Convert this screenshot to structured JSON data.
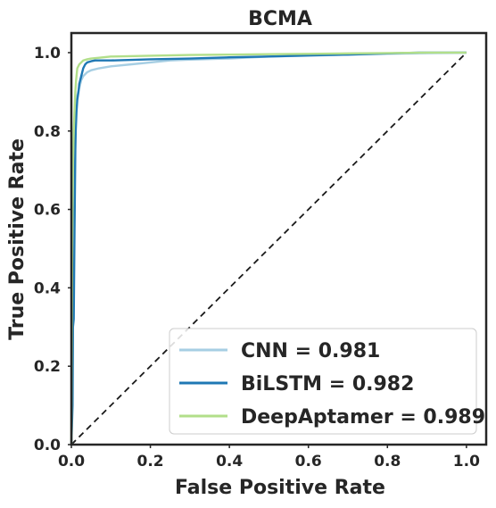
{
  "chart_data": {
    "type": "line",
    "title": "BCMA",
    "xlabel": "False Positive Rate",
    "ylabel": "True Positive Rate",
    "xlim": [
      0.0,
      1.05
    ],
    "ylim": [
      0.0,
      1.05
    ],
    "x_ticks": [
      0.0,
      0.2,
      0.4,
      0.6,
      0.8,
      1.0
    ],
    "y_ticks": [
      0.0,
      0.2,
      0.4,
      0.6,
      0.8,
      1.0
    ],
    "x_tick_labels": [
      "0.0",
      "0.2",
      "0.4",
      "0.6",
      "0.8",
      "1.0"
    ],
    "y_tick_labels": [
      "0.0",
      "0.2",
      "0.4",
      "0.6",
      "0.8",
      "1.0"
    ],
    "grid": false,
    "legend_position": "lower-right",
    "diagonal": {
      "x": [
        0,
        1
      ],
      "y": [
        0,
        1
      ],
      "style": "dashed",
      "color": "#1a1a1a"
    },
    "series": [
      {
        "name": "CNN = 0.981",
        "color": "#a6cee3",
        "x": [
          0,
          0.002,
          0.004,
          0.006,
          0.008,
          0.01,
          0.012,
          0.015,
          0.02,
          0.025,
          0.03,
          0.04,
          0.05,
          0.07,
          0.1,
          0.15,
          0.2,
          0.25,
          0.3,
          0.4,
          0.5,
          0.6,
          0.7,
          0.8,
          0.9,
          1.0
        ],
        "y": [
          0,
          0.1,
          0.3,
          0.55,
          0.72,
          0.8,
          0.85,
          0.89,
          0.91,
          0.93,
          0.94,
          0.95,
          0.955,
          0.96,
          0.965,
          0.97,
          0.975,
          0.98,
          0.982,
          0.985,
          0.99,
          0.992,
          0.995,
          0.997,
          0.999,
          1.0
        ]
      },
      {
        "name": "BiLSTM = 0.982",
        "color": "#1f78b4",
        "x": [
          0,
          0.003,
          0.004,
          0.006,
          0.008,
          0.01,
          0.011,
          0.013,
          0.015,
          0.018,
          0.02,
          0.025,
          0.03,
          0.035,
          0.04,
          0.05,
          0.06,
          0.08,
          0.1,
          0.2,
          0.3,
          0.4,
          0.5,
          0.6,
          0.7,
          0.8,
          0.88,
          0.9,
          1.0
        ],
        "y": [
          0,
          0.1,
          0.3,
          0.32,
          0.55,
          0.75,
          0.8,
          0.85,
          0.88,
          0.9,
          0.92,
          0.94,
          0.96,
          0.97,
          0.975,
          0.978,
          0.98,
          0.98,
          0.98,
          0.983,
          0.985,
          0.988,
          0.99,
          0.993,
          0.995,
          0.998,
          1.0,
          1.0,
          1.0
        ]
      },
      {
        "name": "DeepAptamer = 0.989",
        "color": "#b2df8a",
        "x": [
          0,
          0.002,
          0.004,
          0.006,
          0.008,
          0.01,
          0.012,
          0.015,
          0.02,
          0.025,
          0.03,
          0.04,
          0.05,
          0.07,
          0.1,
          0.2,
          0.3,
          0.4,
          0.5,
          0.6,
          0.7,
          0.8,
          0.9,
          1.0
        ],
        "y": [
          0,
          0.5,
          0.72,
          0.8,
          0.85,
          0.9,
          0.93,
          0.96,
          0.97,
          0.975,
          0.98,
          0.983,
          0.985,
          0.987,
          0.99,
          0.992,
          0.994,
          0.995,
          0.996,
          0.997,
          0.998,
          0.999,
          1.0,
          1.0
        ]
      }
    ]
  }
}
